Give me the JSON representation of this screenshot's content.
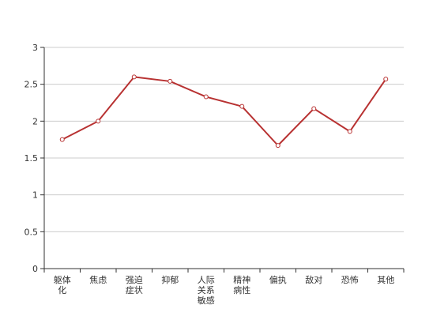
{
  "chart_data": {
    "type": "line",
    "categories": [
      "躯体化",
      "焦虑",
      "强迫症状",
      "抑郁",
      "人际关系敏感",
      "精神病性",
      "偏执",
      "敌对",
      "恐怖",
      "其他"
    ],
    "series": [
      {
        "values": [
          1.75,
          2.0,
          2.6,
          2.54,
          2.33,
          2.2,
          1.67,
          2.17,
          1.86,
          2.57
        ]
      }
    ],
    "ylim": [
      0,
      3
    ],
    "yticks": [
      0,
      0.5,
      1,
      1.5,
      2,
      2.5,
      3
    ],
    "ytick_labels": [
      "0",
      "0.5",
      "1",
      "1.5",
      "2",
      "2.5",
      "3"
    ],
    "grid": true,
    "colors": {
      "line": "#b83232",
      "point_fill": "#ffffff",
      "grid": "#cccccc",
      "axis": "#333333",
      "tick_text": "#333333"
    }
  }
}
